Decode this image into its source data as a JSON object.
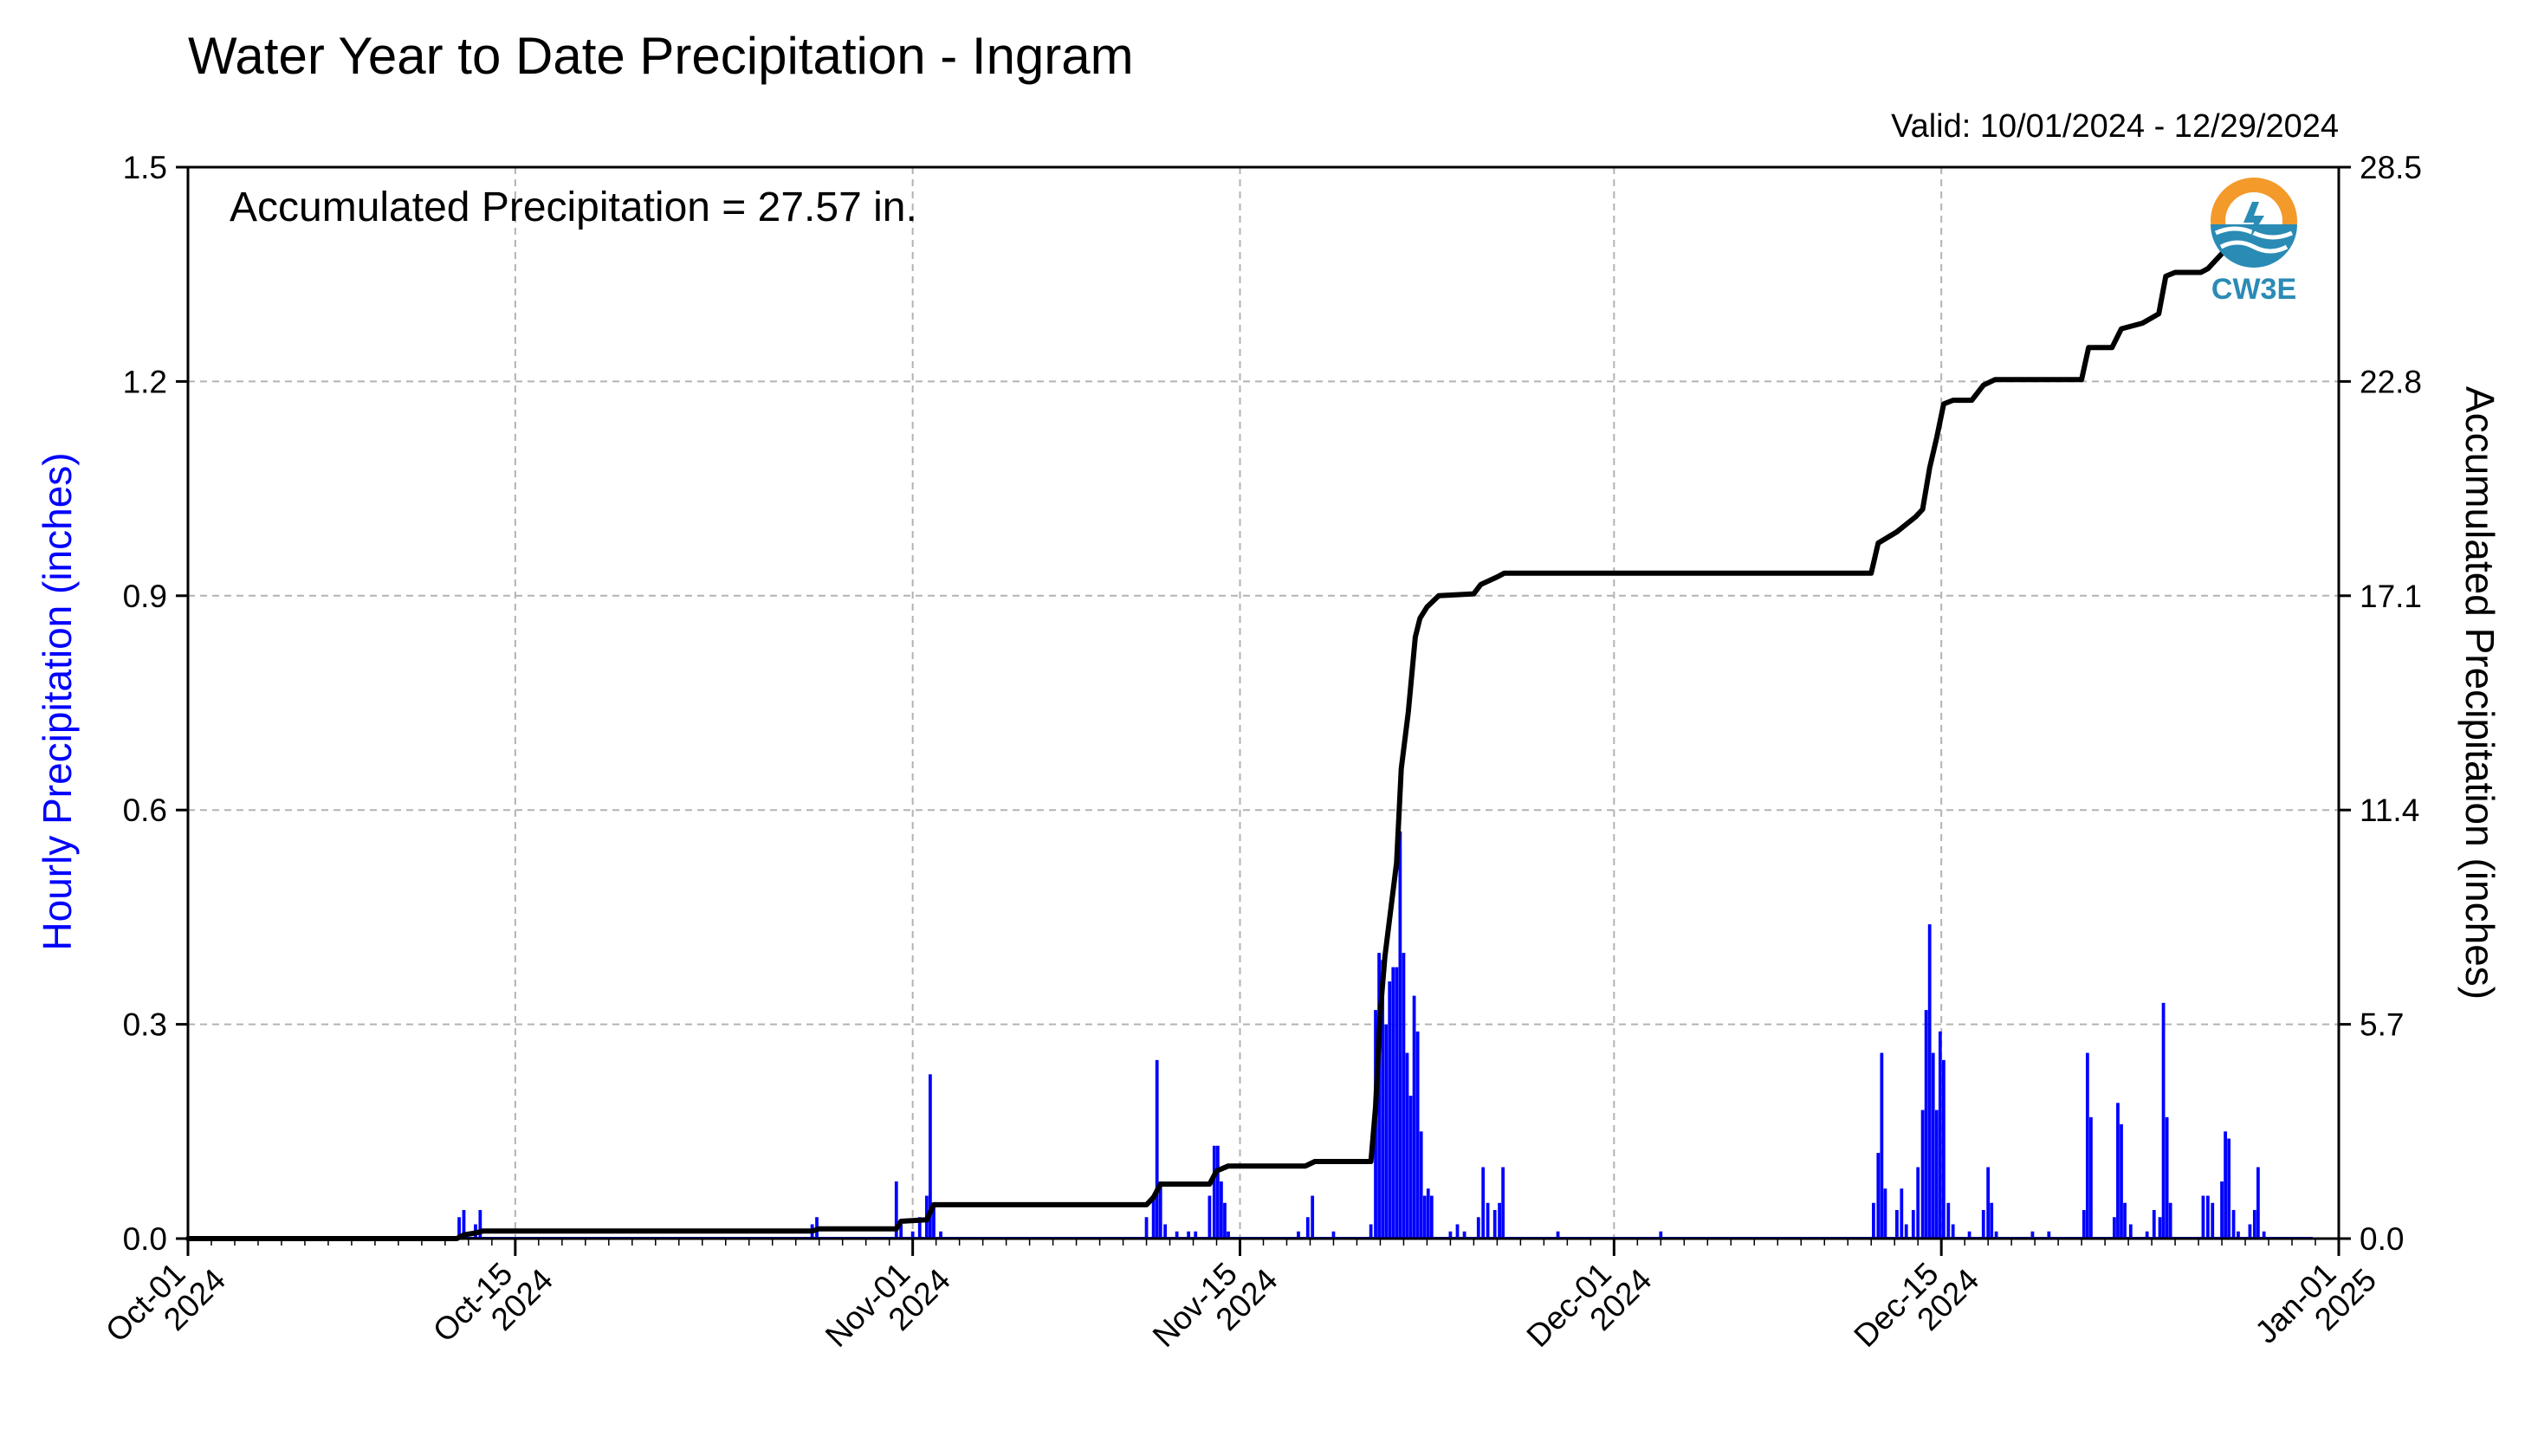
{
  "chart_data": {
    "type": "bar+line",
    "title": "Water Year to Date Precipitation - Ingram",
    "valid_range": "Valid: 10/01/2024 - 12/29/2024",
    "annotation": "Accumulated Precipitation = 27.57 in.",
    "logo_text": "CW3E",
    "ylabel_left": "Hourly Precipitation (inches)",
    "ylabel_right": "Accumulated Precipitation (inches)",
    "ylim_left": [
      0,
      1.5
    ],
    "ylim_right": [
      0,
      28.5
    ],
    "yticks_left": [
      "0.0",
      "0.3",
      "0.6",
      "0.9",
      "1.2",
      "1.5"
    ],
    "yticks_right": [
      "0.0",
      "5.7",
      "11.4",
      "17.1",
      "22.8",
      "28.5"
    ],
    "xlim_days": [
      0,
      92
    ],
    "xticks": [
      {
        "day": 0,
        "line1": "Oct-01",
        "line2": "2024"
      },
      {
        "day": 14,
        "line1": "Oct-15",
        "line2": "2024"
      },
      {
        "day": 31,
        "line1": "Nov-01",
        "line2": "2024"
      },
      {
        "day": 45,
        "line1": "Nov-15",
        "line2": "2024"
      },
      {
        "day": 61,
        "line1": "Dec-01",
        "line2": "2024"
      },
      {
        "day": 75,
        "line1": "Dec-15",
        "line2": "2024"
      },
      {
        "day": 92,
        "line1": "Jan-01",
        "line2": "2025"
      }
    ],
    "grid": true,
    "series": [
      {
        "name": "Hourly Precipitation",
        "color": "#0000ff",
        "type": "bar",
        "points": [
          [
            11.6,
            0.03
          ],
          [
            11.8,
            0.04
          ],
          [
            12.3,
            0.02
          ],
          [
            12.5,
            0.04
          ],
          [
            26.7,
            0.02
          ],
          [
            26.9,
            0.03
          ],
          [
            30.3,
            0.08
          ],
          [
            30.5,
            0.02
          ],
          [
            31.0,
            0.01
          ],
          [
            31.3,
            0.03
          ],
          [
            31.6,
            0.06
          ],
          [
            31.75,
            0.23
          ],
          [
            31.9,
            0.05
          ],
          [
            32.2,
            0.01
          ],
          [
            41.0,
            0.03
          ],
          [
            41.3,
            0.06
          ],
          [
            41.45,
            0.25
          ],
          [
            41.6,
            0.08
          ],
          [
            41.8,
            0.02
          ],
          [
            42.3,
            0.01
          ],
          [
            42.8,
            0.01
          ],
          [
            43.1,
            0.01
          ],
          [
            43.7,
            0.06
          ],
          [
            43.9,
            0.13
          ],
          [
            44.05,
            0.13
          ],
          [
            44.2,
            0.08
          ],
          [
            44.35,
            0.05
          ],
          [
            44.5,
            0.01
          ],
          [
            47.5,
            0.01
          ],
          [
            47.9,
            0.03
          ],
          [
            48.1,
            0.06
          ],
          [
            49.0,
            0.01
          ],
          [
            50.6,
            0.02
          ],
          [
            50.8,
            0.32
          ],
          [
            50.95,
            0.4
          ],
          [
            51.1,
            0.39
          ],
          [
            51.25,
            0.3
          ],
          [
            51.4,
            0.36
          ],
          [
            51.55,
            0.38
          ],
          [
            51.7,
            0.38
          ],
          [
            51.85,
            0.57
          ],
          [
            52.0,
            0.4
          ],
          [
            52.15,
            0.26
          ],
          [
            52.3,
            0.2
          ],
          [
            52.45,
            0.34
          ],
          [
            52.6,
            0.29
          ],
          [
            52.75,
            0.15
          ],
          [
            52.9,
            0.06
          ],
          [
            53.05,
            0.07
          ],
          [
            53.2,
            0.06
          ],
          [
            54.0,
            0.01
          ],
          [
            54.3,
            0.02
          ],
          [
            54.6,
            0.01
          ],
          [
            55.2,
            0.03
          ],
          [
            55.4,
            0.1
          ],
          [
            55.6,
            0.05
          ],
          [
            55.9,
            0.04
          ],
          [
            56.1,
            0.05
          ],
          [
            56.25,
            0.1
          ],
          [
            58.6,
            0.01
          ],
          [
            63.0,
            0.01
          ],
          [
            72.1,
            0.05
          ],
          [
            72.3,
            0.12
          ],
          [
            72.45,
            0.26
          ],
          [
            72.6,
            0.07
          ],
          [
            73.1,
            0.04
          ],
          [
            73.3,
            0.07
          ],
          [
            73.5,
            0.02
          ],
          [
            73.8,
            0.04
          ],
          [
            74.0,
            0.1
          ],
          [
            74.2,
            0.18
          ],
          [
            74.35,
            0.32
          ],
          [
            74.5,
            0.44
          ],
          [
            74.65,
            0.26
          ],
          [
            74.8,
            0.18
          ],
          [
            74.95,
            0.29
          ],
          [
            75.1,
            0.25
          ],
          [
            75.3,
            0.05
          ],
          [
            75.5,
            0.02
          ],
          [
            76.2,
            0.01
          ],
          [
            76.8,
            0.04
          ],
          [
            77.0,
            0.1
          ],
          [
            77.15,
            0.05
          ],
          [
            77.35,
            0.01
          ],
          [
            78.9,
            0.01
          ],
          [
            79.6,
            0.01
          ],
          [
            81.1,
            0.04
          ],
          [
            81.25,
            0.26
          ],
          [
            81.4,
            0.17
          ],
          [
            82.4,
            0.03
          ],
          [
            82.55,
            0.19
          ],
          [
            82.7,
            0.16
          ],
          [
            82.85,
            0.05
          ],
          [
            83.1,
            0.02
          ],
          [
            83.8,
            0.01
          ],
          [
            84.1,
            0.04
          ],
          [
            84.35,
            0.03
          ],
          [
            84.5,
            0.33
          ],
          [
            84.65,
            0.17
          ],
          [
            84.8,
            0.05
          ],
          [
            86.2,
            0.06
          ],
          [
            86.4,
            0.06
          ],
          [
            86.6,
            0.05
          ],
          [
            87.0,
            0.08
          ],
          [
            87.15,
            0.15
          ],
          [
            87.3,
            0.14
          ],
          [
            87.5,
            0.04
          ],
          [
            87.7,
            0.01
          ],
          [
            88.2,
            0.02
          ],
          [
            88.4,
            0.04
          ],
          [
            88.55,
            0.1
          ],
          [
            88.8,
            0.01
          ]
        ]
      },
      {
        "name": "Accumulated Precipitation",
        "color": "#000000",
        "type": "line",
        "points": [
          [
            0,
            0.0
          ],
          [
            11.5,
            0.0
          ],
          [
            11.8,
            0.1
          ],
          [
            12.3,
            0.15
          ],
          [
            12.6,
            0.2
          ],
          [
            26.7,
            0.2
          ],
          [
            27.0,
            0.26
          ],
          [
            30.3,
            0.26
          ],
          [
            30.5,
            0.46
          ],
          [
            31.6,
            0.5
          ],
          [
            31.9,
            0.9
          ],
          [
            32.3,
            0.9
          ],
          [
            41.0,
            0.9
          ],
          [
            41.3,
            1.1
          ],
          [
            41.6,
            1.45
          ],
          [
            43.7,
            1.45
          ],
          [
            44.0,
            1.8
          ],
          [
            44.5,
            1.93
          ],
          [
            47.8,
            1.93
          ],
          [
            48.2,
            2.05
          ],
          [
            50.6,
            2.05
          ],
          [
            50.8,
            3.5
          ],
          [
            51.0,
            6.0
          ],
          [
            51.2,
            7.5
          ],
          [
            51.5,
            9.0
          ],
          [
            51.7,
            10.0
          ],
          [
            51.9,
            12.5
          ],
          [
            52.2,
            14.0
          ],
          [
            52.5,
            16.0
          ],
          [
            52.7,
            16.5
          ],
          [
            53.0,
            16.8
          ],
          [
            53.5,
            17.1
          ],
          [
            55.0,
            17.15
          ],
          [
            55.3,
            17.4
          ],
          [
            56.0,
            17.6
          ],
          [
            56.3,
            17.7
          ],
          [
            72.0,
            17.7
          ],
          [
            72.3,
            18.5
          ],
          [
            72.7,
            18.65
          ],
          [
            73.1,
            18.8
          ],
          [
            73.5,
            19.0
          ],
          [
            73.9,
            19.2
          ],
          [
            74.2,
            19.4
          ],
          [
            74.5,
            20.5
          ],
          [
            74.8,
            21.3
          ],
          [
            75.1,
            22.2
          ],
          [
            75.5,
            22.3
          ],
          [
            76.3,
            22.3
          ],
          [
            76.8,
            22.7
          ],
          [
            77.3,
            22.85
          ],
          [
            81.0,
            22.85
          ],
          [
            81.3,
            23.7
          ],
          [
            82.3,
            23.7
          ],
          [
            82.7,
            24.2
          ],
          [
            83.6,
            24.35
          ],
          [
            84.3,
            24.6
          ],
          [
            84.6,
            25.6
          ],
          [
            85.0,
            25.7
          ],
          [
            86.1,
            25.7
          ],
          [
            86.4,
            25.8
          ],
          [
            87.0,
            26.2
          ],
          [
            87.3,
            26.6
          ],
          [
            87.8,
            26.8
          ],
          [
            88.2,
            27.15
          ],
          [
            88.6,
            27.4
          ],
          [
            89.0,
            27.57
          ]
        ]
      }
    ]
  },
  "colors": {
    "left_axis_label": "#0000ff",
    "grid": "#b3b3b3",
    "logo_orange": "#f39a2b",
    "logo_blue": "#2a8bb5"
  }
}
